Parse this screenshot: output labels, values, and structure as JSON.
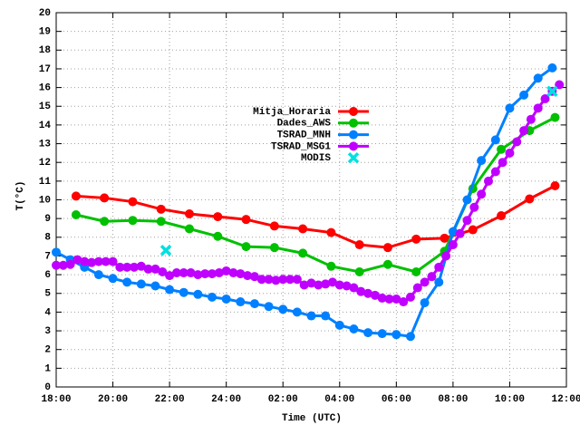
{
  "chart_data": {
    "type": "line",
    "xlabel": "Time (UTC)",
    "ylabel": "T(°C)",
    "xlim": [
      0,
      18
    ],
    "ylim": [
      0,
      20
    ],
    "xticks": [
      {
        "value": 0,
        "label": "18:00"
      },
      {
        "value": 2,
        "label": "20:00"
      },
      {
        "value": 4,
        "label": "22:00"
      },
      {
        "value": 6,
        "label": "24:00"
      },
      {
        "value": 8,
        "label": "02:00"
      },
      {
        "value": 10,
        "label": "04:00"
      },
      {
        "value": 12,
        "label": "06:00"
      },
      {
        "value": 14,
        "label": "08:00"
      },
      {
        "value": 16,
        "label": "10:00"
      },
      {
        "value": 18,
        "label": "12:00"
      }
    ],
    "yticks": [
      0,
      1,
      2,
      3,
      4,
      5,
      6,
      7,
      8,
      9,
      10,
      11,
      12,
      13,
      14,
      15,
      16,
      17,
      18,
      19,
      20
    ],
    "grid": true,
    "series": [
      {
        "name": "Mitja_Horaria",
        "color": "#ff0000",
        "marker": "circle",
        "x": [
          0.7,
          1.7,
          2.7,
          3.7,
          4.7,
          5.7,
          6.7,
          7.7,
          8.7,
          9.7,
          10.7,
          11.7,
          12.7,
          13.7,
          14.7,
          15.7,
          16.7,
          17.6
        ],
        "values": [
          10.2,
          10.1,
          9.9,
          9.5,
          9.25,
          9.1,
          8.95,
          8.6,
          8.45,
          8.25,
          7.6,
          7.45,
          7.9,
          7.95,
          8.4,
          9.15,
          10.05,
          10.75
        ]
      },
      {
        "name": "Dades_AWS",
        "color": "#00c000",
        "marker": "circle",
        "x": [
          0.7,
          1.7,
          2.7,
          3.7,
          4.7,
          5.7,
          6.7,
          7.7,
          8.7,
          9.7,
          10.7,
          11.7,
          12.7,
          13.7,
          14.7,
          15.7,
          16.7,
          17.6
        ],
        "values": [
          9.2,
          8.85,
          8.9,
          8.85,
          8.45,
          8.05,
          7.5,
          7.45,
          7.15,
          6.45,
          6.15,
          6.55,
          6.15,
          7.25,
          10.6,
          12.7,
          13.7,
          14.4
        ]
      },
      {
        "name": "TSRAD_MNH",
        "color": "#0080ff",
        "marker": "circle",
        "x": [
          0,
          0.5,
          1,
          1.5,
          2,
          2.5,
          3,
          3.5,
          4,
          4.5,
          5,
          5.5,
          6,
          6.5,
          7,
          7.5,
          8,
          8.5,
          9,
          9.5,
          10,
          10.5,
          11,
          11.5,
          12,
          12.5,
          13,
          13.5,
          14,
          14.5,
          15,
          15.5,
          16,
          16.5,
          17,
          17.5
        ],
        "values": [
          7.2,
          6.8,
          6.4,
          6.0,
          5.8,
          5.6,
          5.5,
          5.4,
          5.2,
          5.05,
          4.95,
          4.8,
          4.7,
          4.55,
          4.45,
          4.3,
          4.15,
          4.0,
          3.8,
          3.8,
          3.3,
          3.1,
          2.9,
          2.85,
          2.8,
          2.7,
          4.5,
          5.6,
          8.3,
          10.0,
          12.1,
          13.2,
          14.9,
          15.6,
          16.5,
          17.05
        ]
      },
      {
        "name": "TSRAD_MSG1",
        "color": "#c000ff",
        "marker": "circle",
        "x": [
          0,
          0.25,
          0.5,
          0.75,
          1,
          1.25,
          1.5,
          1.75,
          2,
          2.25,
          2.5,
          2.75,
          3,
          3.25,
          3.5,
          3.75,
          4,
          4.25,
          4.5,
          4.75,
          5,
          5.25,
          5.5,
          5.75,
          6,
          6.25,
          6.5,
          6.75,
          7,
          7.25,
          7.5,
          7.75,
          8,
          8.25,
          8.5,
          8.75,
          9,
          9.25,
          9.5,
          9.75,
          10,
          10.25,
          10.5,
          10.75,
          11,
          11.25,
          11.5,
          11.75,
          12,
          12.25,
          12.5,
          12.75,
          13,
          13.25,
          13.5,
          13.75,
          14,
          14.25,
          14.5,
          14.75,
          15,
          15.25,
          15.5,
          15.75,
          16,
          16.25,
          16.5,
          16.75,
          17,
          17.25,
          17.5,
          17.75
        ],
        "values": [
          6.5,
          6.5,
          6.55,
          6.8,
          6.7,
          6.65,
          6.7,
          6.7,
          6.7,
          6.4,
          6.4,
          6.4,
          6.45,
          6.3,
          6.3,
          6.15,
          5.95,
          6.1,
          6.1,
          6.1,
          6.0,
          6.05,
          6.05,
          6.1,
          6.2,
          6.1,
          6.05,
          5.95,
          5.9,
          5.75,
          5.75,
          5.7,
          5.75,
          5.75,
          5.75,
          5.45,
          5.55,
          5.45,
          5.5,
          5.6,
          5.45,
          5.4,
          5.3,
          5.1,
          5.0,
          4.9,
          4.75,
          4.7,
          4.7,
          4.55,
          4.8,
          5.3,
          5.6,
          5.9,
          6.4,
          7.0,
          7.6,
          8.2,
          8.9,
          9.6,
          10.3,
          11.0,
          11.5,
          12.0,
          12.5,
          13.1,
          13.7,
          14.3,
          14.9,
          15.4,
          15.8,
          16.15
        ]
      },
      {
        "name": "MODIS",
        "color": "#00e0e0",
        "marker": "cross",
        "line": false,
        "x": [
          3.87,
          17.5
        ],
        "values": [
          7.3,
          15.8
        ]
      }
    ]
  }
}
